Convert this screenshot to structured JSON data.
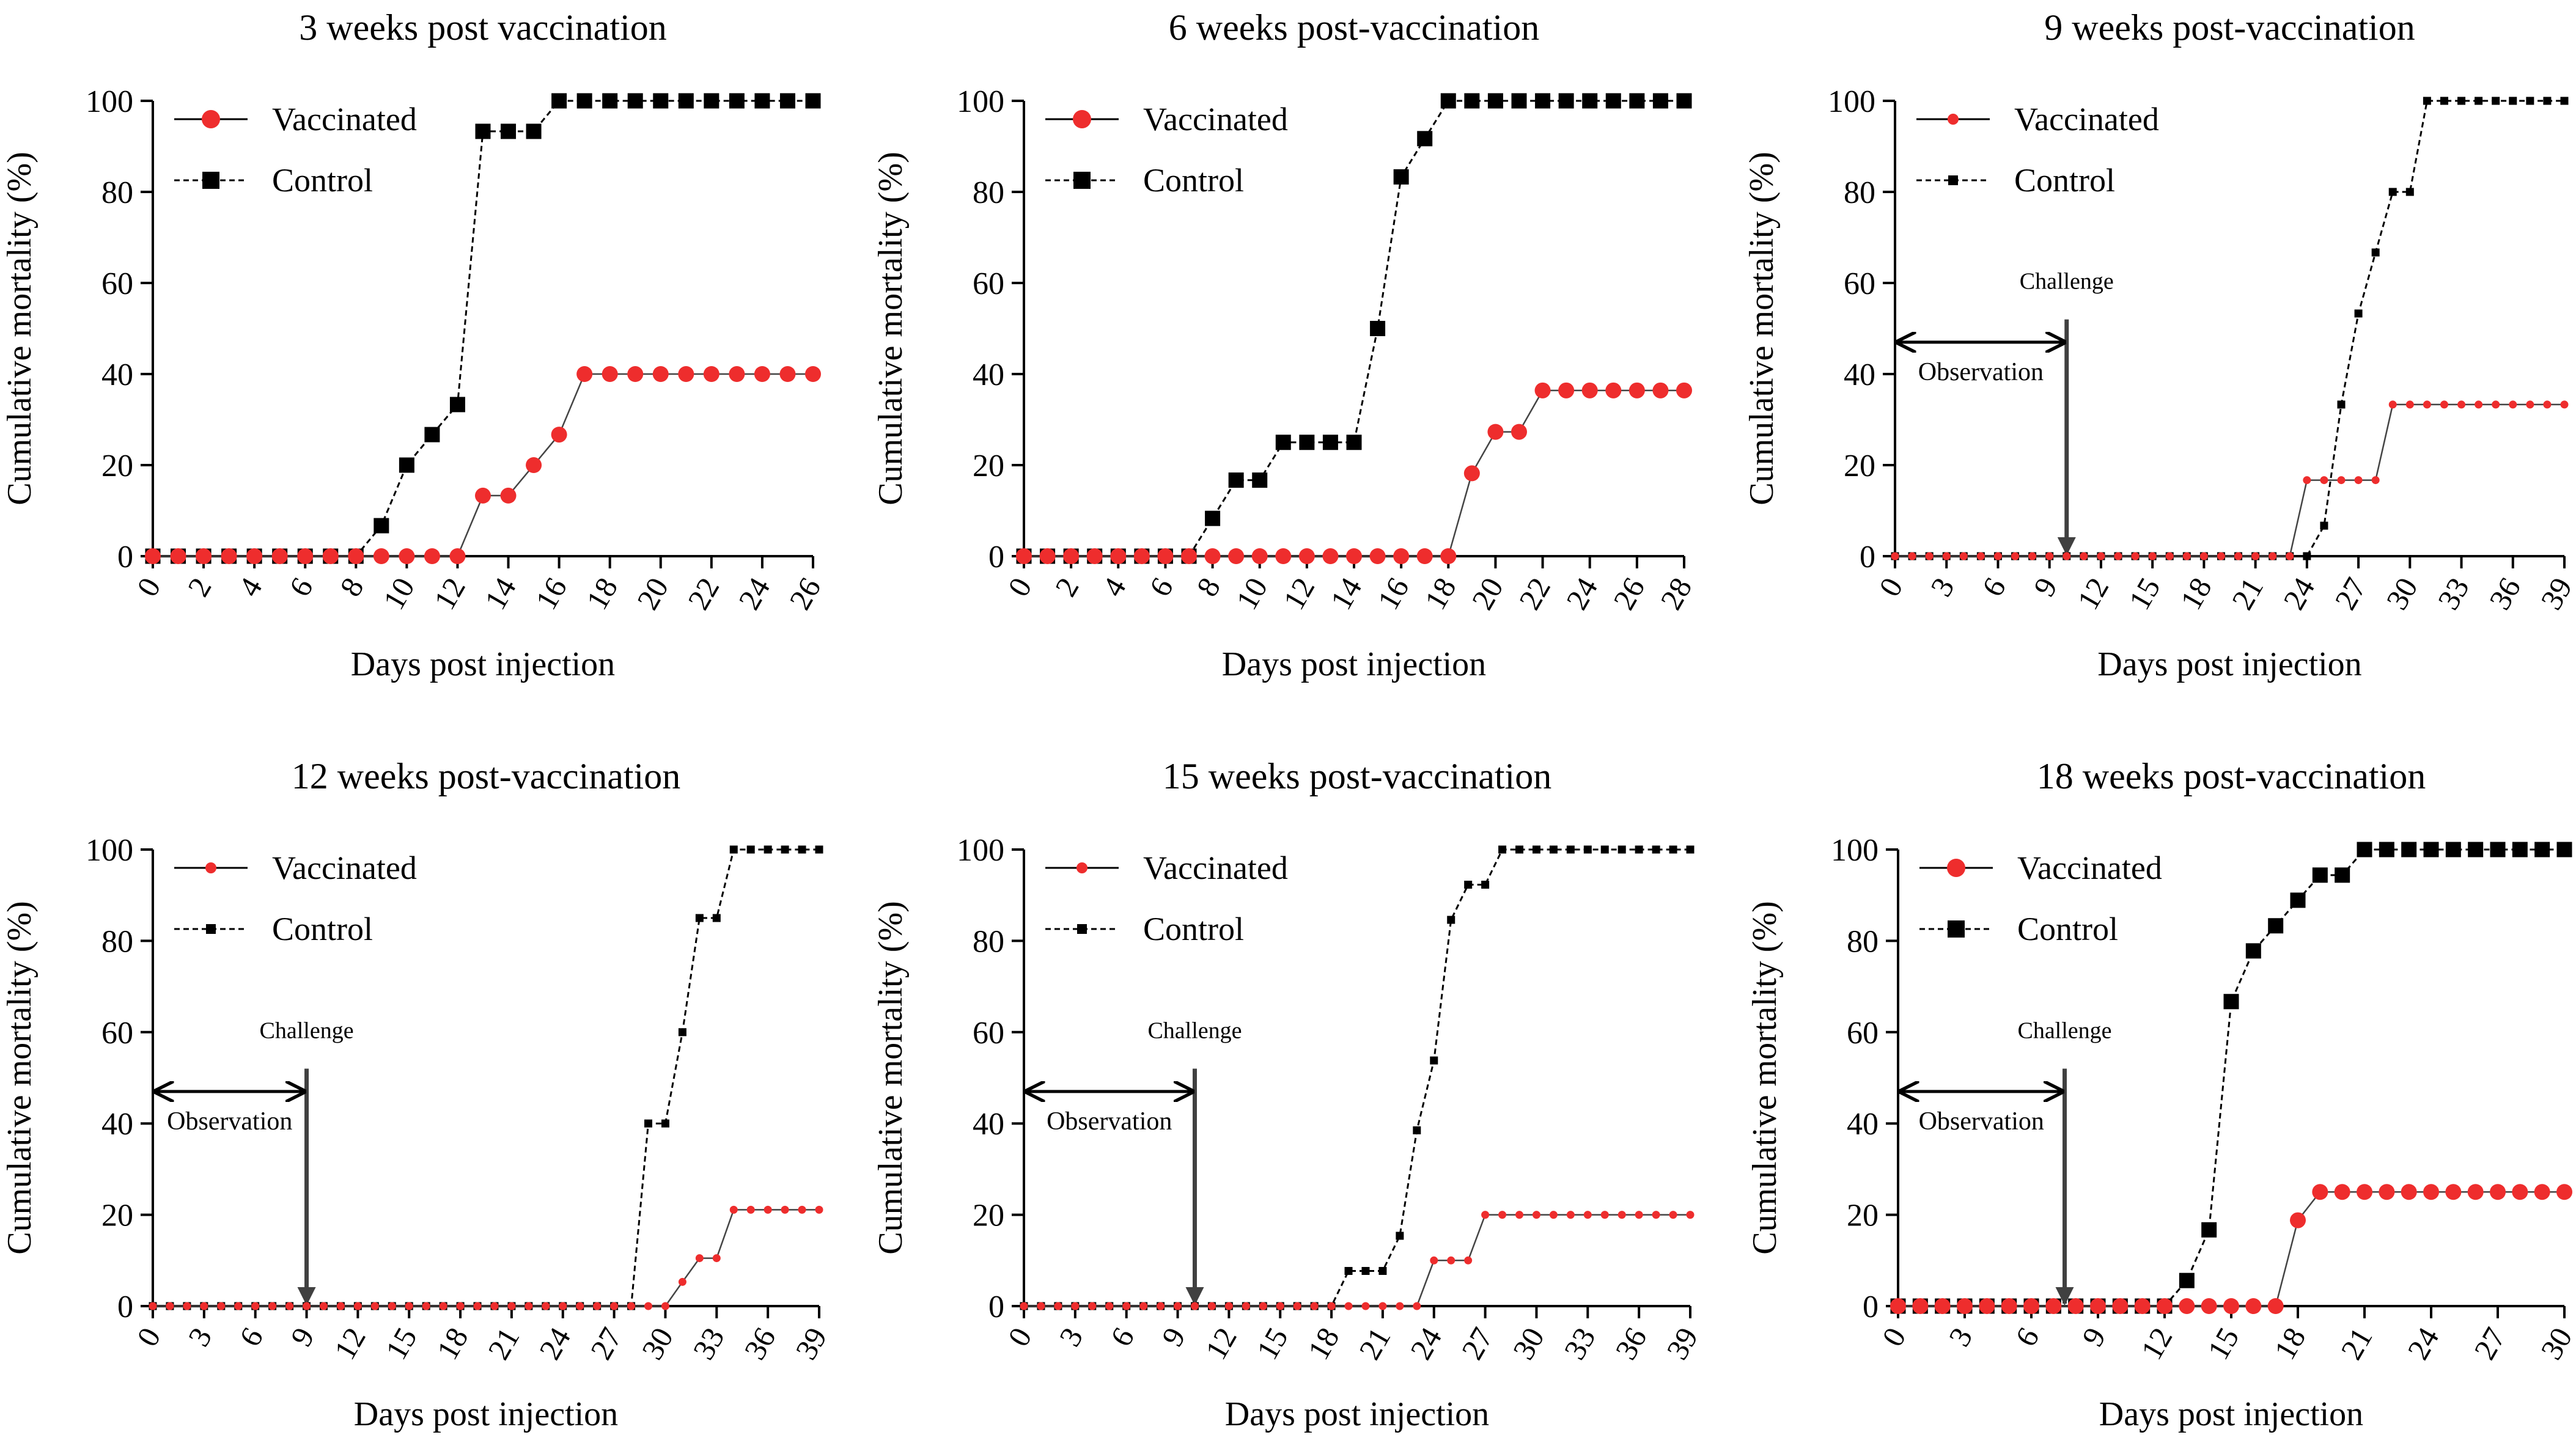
{
  "figure": {
    "colors": {
      "vaccinated": "#ee2d2d",
      "control": "#000000",
      "annotation": "#404040"
    }
  },
  "chart_data": [
    {
      "type": "line",
      "title": "3 weeks post vaccination",
      "xlabel": "Days post injection",
      "ylabel": "Cumulative mortality  (%)",
      "xlim": [
        0,
        26
      ],
      "ylim": [
        0,
        100
      ],
      "xticks": [
        0,
        2,
        4,
        6,
        8,
        10,
        12,
        14,
        16,
        18,
        20,
        22,
        24,
        26
      ],
      "yticks": [
        0,
        20,
        40,
        60,
        80,
        100
      ],
      "marker_size": "large",
      "series": [
        {
          "name": "Vaccinated",
          "marker": "circle",
          "x": [
            0,
            1,
            2,
            3,
            4,
            5,
            6,
            7,
            8,
            9,
            10,
            11,
            12,
            13,
            14,
            15,
            16,
            17,
            18,
            19,
            20,
            21,
            22,
            23,
            24,
            25,
            26
          ],
          "y": [
            0,
            0,
            0,
            0,
            0,
            0,
            0,
            0,
            0,
            0,
            0,
            0,
            0,
            13.3,
            13.3,
            20,
            26.7,
            40,
            40,
            40,
            40,
            40,
            40,
            40,
            40,
            40,
            40
          ]
        },
        {
          "name": "Control",
          "marker": "square",
          "x": [
            0,
            1,
            2,
            3,
            4,
            5,
            6,
            7,
            8,
            9,
            10,
            11,
            12,
            13,
            14,
            15,
            16,
            17,
            18,
            19,
            20,
            21,
            22,
            23,
            24,
            25,
            26
          ],
          "y": [
            0,
            0,
            0,
            0,
            0,
            0,
            0,
            0,
            0,
            6.7,
            20,
            26.7,
            33.3,
            93.3,
            93.3,
            93.3,
            100,
            100,
            100,
            100,
            100,
            100,
            100,
            100,
            100,
            100,
            100
          ]
        }
      ]
    },
    {
      "type": "line",
      "title": "6 weeks post-vaccination",
      "xlabel": "Days post injection",
      "ylabel": "Cumulative mortality  (%)",
      "xlim": [
        0,
        28
      ],
      "ylim": [
        0,
        100
      ],
      "xticks": [
        0,
        2,
        4,
        6,
        8,
        10,
        12,
        14,
        16,
        18,
        20,
        22,
        24,
        26,
        28
      ],
      "yticks": [
        0,
        20,
        40,
        60,
        80,
        100
      ],
      "marker_size": "large",
      "series": [
        {
          "name": "Vaccinated",
          "marker": "circle",
          "x": [
            0,
            1,
            2,
            3,
            4,
            5,
            6,
            7,
            8,
            9,
            10,
            11,
            12,
            13,
            14,
            15,
            16,
            17,
            18,
            19,
            20,
            21,
            22,
            23,
            24,
            25,
            26,
            27,
            28
          ],
          "y": [
            0,
            0,
            0,
            0,
            0,
            0,
            0,
            0,
            0,
            0,
            0,
            0,
            0,
            0,
            0,
            0,
            0,
            0,
            0,
            18.2,
            27.3,
            27.3,
            36.4,
            36.4,
            36.4,
            36.4,
            36.4,
            36.4,
            36.4
          ]
        },
        {
          "name": "Control",
          "marker": "square",
          "x": [
            0,
            1,
            2,
            3,
            4,
            5,
            6,
            7,
            8,
            9,
            10,
            11,
            12,
            13,
            14,
            15,
            16,
            17,
            18,
            19,
            20,
            21,
            22,
            23,
            24,
            25,
            26,
            27,
            28
          ],
          "y": [
            0,
            0,
            0,
            0,
            0,
            0,
            0,
            0,
            8.3,
            16.7,
            16.7,
            25,
            25,
            25,
            25,
            50,
            83.3,
            91.7,
            100,
            100,
            100,
            100,
            100,
            100,
            100,
            100,
            100,
            100,
            100
          ]
        }
      ]
    },
    {
      "type": "line",
      "title": "9 weeks post-vaccination",
      "xlabel": "Days post injection",
      "ylabel": "Cumulative mortality  (%)",
      "xlim": [
        0,
        39
      ],
      "ylim": [
        0,
        100
      ],
      "xticks": [
        0,
        3,
        6,
        9,
        12,
        15,
        18,
        21,
        24,
        27,
        30,
        33,
        36,
        39
      ],
      "yticks": [
        0,
        20,
        40,
        60,
        80,
        100
      ],
      "marker_size": "small",
      "annotation": {
        "challenge_label": "Challenge",
        "observation_label": "Observation",
        "challenge_day": 10
      },
      "series": [
        {
          "name": "Vaccinated",
          "marker": "circle",
          "x": [
            0,
            1,
            2,
            3,
            4,
            5,
            6,
            7,
            8,
            9,
            10,
            11,
            12,
            13,
            14,
            15,
            16,
            17,
            18,
            19,
            20,
            21,
            22,
            23,
            24,
            25,
            26,
            27,
            28,
            29,
            30,
            31,
            32,
            33,
            34,
            35,
            36,
            37,
            38,
            39
          ],
          "y": [
            0,
            0,
            0,
            0,
            0,
            0,
            0,
            0,
            0,
            0,
            0,
            0,
            0,
            0,
            0,
            0,
            0,
            0,
            0,
            0,
            0,
            0,
            0,
            0,
            16.7,
            16.7,
            16.7,
            16.7,
            16.7,
            33.3,
            33.3,
            33.3,
            33.3,
            33.3,
            33.3,
            33.3,
            33.3,
            33.3,
            33.3,
            33.3
          ]
        },
        {
          "name": "Control",
          "marker": "square",
          "x": [
            0,
            1,
            2,
            3,
            4,
            5,
            6,
            7,
            8,
            9,
            10,
            11,
            12,
            13,
            14,
            15,
            16,
            17,
            18,
            19,
            20,
            21,
            22,
            23,
            24,
            25,
            26,
            27,
            28,
            29,
            30,
            31,
            32,
            33,
            34,
            35,
            36,
            37,
            38,
            39
          ],
          "y": [
            0,
            0,
            0,
            0,
            0,
            0,
            0,
            0,
            0,
            0,
            0,
            0,
            0,
            0,
            0,
            0,
            0,
            0,
            0,
            0,
            0,
            0,
            0,
            0,
            0,
            6.7,
            33.3,
            53.3,
            66.7,
            80,
            80,
            100,
            100,
            100,
            100,
            100,
            100,
            100,
            100,
            100
          ]
        }
      ]
    },
    {
      "type": "line",
      "title": "12 weeks post-vaccination",
      "xlabel": "Days post injection",
      "ylabel": "Cumulative mortality  (%)",
      "xlim": [
        0,
        39
      ],
      "ylim": [
        0,
        100
      ],
      "xticks": [
        0,
        3,
        6,
        9,
        12,
        15,
        18,
        21,
        24,
        27,
        30,
        33,
        36,
        39
      ],
      "yticks": [
        0,
        20,
        40,
        60,
        80,
        100
      ],
      "marker_size": "small",
      "annotation": {
        "challenge_label": "Challenge",
        "observation_label": "Observation",
        "challenge_day": 9
      },
      "series": [
        {
          "name": "Vaccinated",
          "marker": "circle",
          "x": [
            0,
            1,
            2,
            3,
            4,
            5,
            6,
            7,
            8,
            9,
            10,
            11,
            12,
            13,
            14,
            15,
            16,
            17,
            18,
            19,
            20,
            21,
            22,
            23,
            24,
            25,
            26,
            27,
            28,
            29,
            30,
            31,
            32,
            33,
            34,
            35,
            36,
            37,
            38,
            39
          ],
          "y": [
            0,
            0,
            0,
            0,
            0,
            0,
            0,
            0,
            0,
            0,
            0,
            0,
            0,
            0,
            0,
            0,
            0,
            0,
            0,
            0,
            0,
            0,
            0,
            0,
            0,
            0,
            0,
            0,
            0,
            0,
            0,
            5.3,
            10.5,
            10.5,
            21.1,
            21.1,
            21.1,
            21.1,
            21.1,
            21.1
          ]
        },
        {
          "name": "Control",
          "marker": "square",
          "x": [
            0,
            1,
            2,
            3,
            4,
            5,
            6,
            7,
            8,
            9,
            10,
            11,
            12,
            13,
            14,
            15,
            16,
            17,
            18,
            19,
            20,
            21,
            22,
            23,
            24,
            25,
            26,
            27,
            28,
            29,
            30,
            31,
            32,
            33,
            34,
            35,
            36,
            37,
            38,
            39
          ],
          "y": [
            0,
            0,
            0,
            0,
            0,
            0,
            0,
            0,
            0,
            0,
            0,
            0,
            0,
            0,
            0,
            0,
            0,
            0,
            0,
            0,
            0,
            0,
            0,
            0,
            0,
            0,
            0,
            0,
            0,
            40,
            40,
            60,
            85,
            85,
            100,
            100,
            100,
            100,
            100,
            100
          ]
        }
      ]
    },
    {
      "type": "line",
      "title": "15 weeks post-vaccination",
      "xlabel": "Days post injection",
      "ylabel": "Cumulative mortality  (%)",
      "xlim": [
        0,
        39
      ],
      "ylim": [
        0,
        100
      ],
      "xticks": [
        0,
        3,
        6,
        9,
        12,
        15,
        18,
        21,
        24,
        27,
        30,
        33,
        36,
        39
      ],
      "yticks": [
        0,
        20,
        40,
        60,
        80,
        100
      ],
      "marker_size": "small",
      "annotation": {
        "challenge_label": "Challenge",
        "observation_label": "Observation",
        "challenge_day": 10
      },
      "series": [
        {
          "name": "Vaccinated",
          "marker": "circle",
          "x": [
            0,
            1,
            2,
            3,
            4,
            5,
            6,
            7,
            8,
            9,
            10,
            11,
            12,
            13,
            14,
            15,
            16,
            17,
            18,
            19,
            20,
            21,
            22,
            23,
            24,
            25,
            26,
            27,
            28,
            29,
            30,
            31,
            32,
            33,
            34,
            35,
            36,
            37,
            38,
            39
          ],
          "y": [
            0,
            0,
            0,
            0,
            0,
            0,
            0,
            0,
            0,
            0,
            0,
            0,
            0,
            0,
            0,
            0,
            0,
            0,
            0,
            0,
            0,
            0,
            0,
            0,
            10,
            10,
            10,
            20,
            20,
            20,
            20,
            20,
            20,
            20,
            20,
            20,
            20,
            20,
            20,
            20
          ]
        },
        {
          "name": "Control",
          "marker": "square",
          "x": [
            0,
            1,
            2,
            3,
            4,
            5,
            6,
            7,
            8,
            9,
            10,
            11,
            12,
            13,
            14,
            15,
            16,
            17,
            18,
            19,
            20,
            21,
            22,
            23,
            24,
            25,
            26,
            27,
            28,
            29,
            30,
            31,
            32,
            33,
            34,
            35,
            36,
            37,
            38,
            39
          ],
          "y": [
            0,
            0,
            0,
            0,
            0,
            0,
            0,
            0,
            0,
            0,
            0,
            0,
            0,
            0,
            0,
            0,
            0,
            0,
            0,
            7.7,
            7.7,
            7.7,
            15.4,
            38.5,
            53.8,
            84.6,
            92.3,
            92.3,
            100,
            100,
            100,
            100,
            100,
            100,
            100,
            100,
            100,
            100,
            100,
            100
          ]
        }
      ]
    },
    {
      "type": "line",
      "title": "18 weeks post-vaccination",
      "xlabel": "Days post injection",
      "ylabel": "Cumulative mortality  (%)",
      "xlim": [
        0,
        30
      ],
      "ylim": [
        0,
        100
      ],
      "xticks": [
        0,
        3,
        6,
        9,
        12,
        15,
        18,
        21,
        24,
        27,
        30
      ],
      "yticks": [
        0,
        20,
        40,
        60,
        80,
        100
      ],
      "marker_size": "large",
      "annotation": {
        "challenge_label": "Challenge",
        "observation_label": "Observation",
        "challenge_day": 7.5
      },
      "series": [
        {
          "name": "Vaccinated",
          "marker": "circle",
          "x": [
            0,
            1,
            2,
            3,
            4,
            5,
            6,
            7,
            8,
            9,
            10,
            11,
            12,
            13,
            14,
            15,
            16,
            17,
            18,
            19,
            20,
            21,
            22,
            23,
            24,
            25,
            26,
            27,
            28,
            29,
            30
          ],
          "y": [
            0,
            0,
            0,
            0,
            0,
            0,
            0,
            0,
            0,
            0,
            0,
            0,
            0,
            0,
            0,
            0,
            0,
            0,
            18.8,
            25,
            25,
            25,
            25,
            25,
            25,
            25,
            25,
            25,
            25,
            25,
            25
          ]
        },
        {
          "name": "Control",
          "marker": "square",
          "x": [
            0,
            1,
            2,
            3,
            4,
            5,
            6,
            7,
            8,
            9,
            10,
            11,
            12,
            13,
            14,
            15,
            16,
            17,
            18,
            19,
            20,
            21,
            22,
            23,
            24,
            25,
            26,
            27,
            28,
            29,
            30
          ],
          "y": [
            0,
            0,
            0,
            0,
            0,
            0,
            0,
            0,
            0,
            0,
            0,
            0,
            0,
            5.6,
            16.7,
            66.7,
            77.8,
            83.3,
            88.9,
            94.4,
            94.4,
            100,
            100,
            100,
            100,
            100,
            100,
            100,
            100,
            100,
            100
          ]
        }
      ]
    }
  ]
}
